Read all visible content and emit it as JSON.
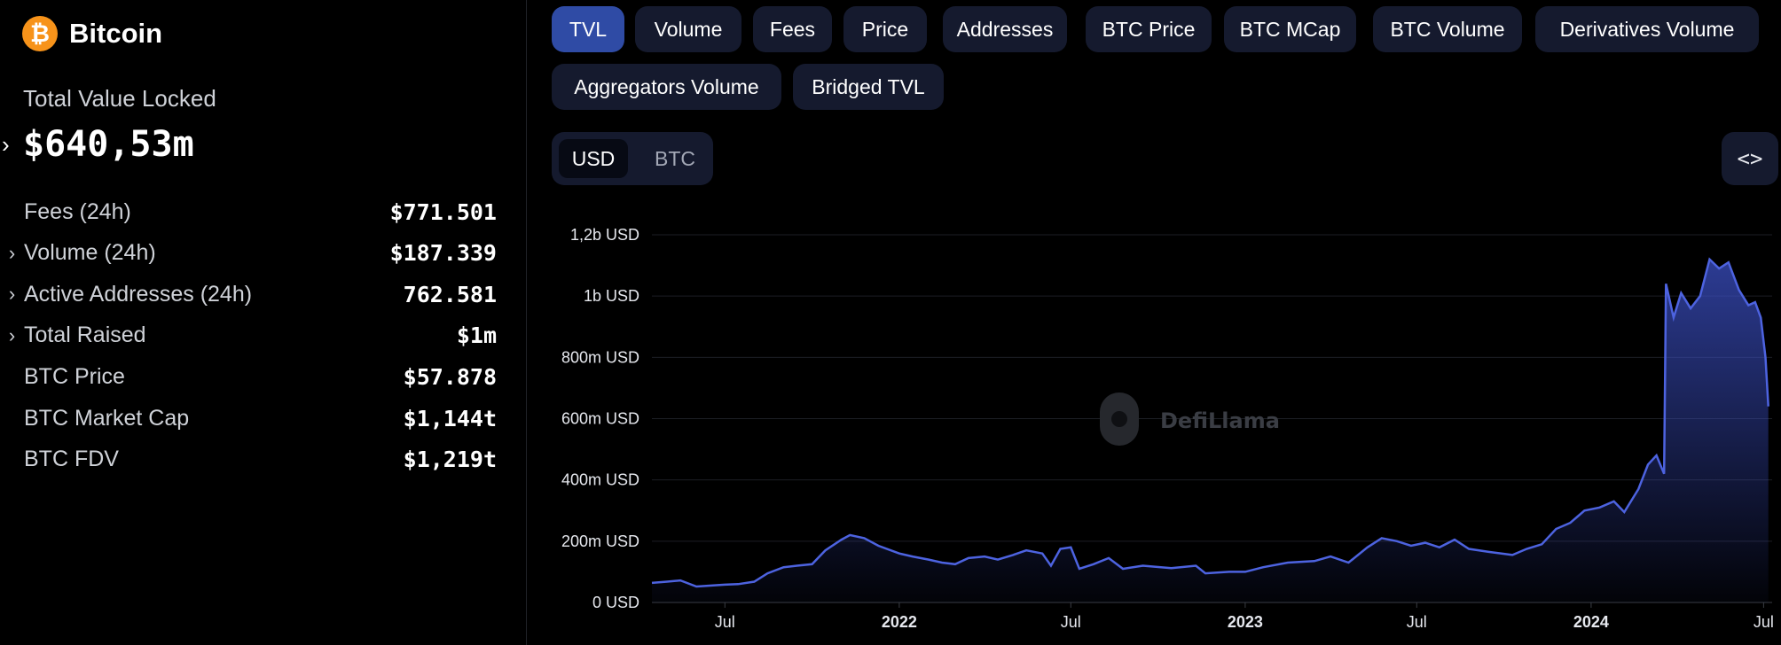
{
  "sidebar": {
    "chain_name": "Bitcoin",
    "logo_glyph": "₿",
    "tvl_label": "Total Value Locked",
    "tvl_value": "$640,53m",
    "stats": [
      {
        "label": "Fees (24h)",
        "value": "$771.501",
        "expandable": false
      },
      {
        "label": "Volume (24h)",
        "value": "$187.339",
        "expandable": true
      },
      {
        "label": "Active Addresses (24h)",
        "value": "762.581",
        "expandable": true
      },
      {
        "label": "Total Raised",
        "value": "$1m",
        "expandable": true
      },
      {
        "label": "BTC Price",
        "value": "$57.878",
        "expandable": false
      },
      {
        "label": "BTC Market Cap",
        "value": "$1,144t",
        "expandable": false
      },
      {
        "label": "BTC FDV",
        "value": "$1,219t",
        "expandable": false
      }
    ]
  },
  "tabs": [
    {
      "label": "TVL",
      "active": true
    },
    {
      "label": "Volume",
      "active": false
    },
    {
      "label": "Fees",
      "active": false
    },
    {
      "label": "Price",
      "active": false
    },
    {
      "label": "Addresses",
      "active": false
    },
    {
      "label": "BTC Price",
      "active": false
    },
    {
      "label": "BTC MCap",
      "active": false
    },
    {
      "label": "BTC Volume",
      "active": false
    },
    {
      "label": "Derivatives Volume",
      "active": false
    },
    {
      "label": "Aggregators Volume",
      "active": false
    },
    {
      "label": "Bridged TVL",
      "active": false
    }
  ],
  "currency_toggle": {
    "options": [
      "USD",
      "BTC"
    ],
    "selected": "USD"
  },
  "embed_button": {
    "glyph": "<>",
    "icon": "code-icon"
  },
  "watermark": {
    "text": "DefiLlama"
  },
  "colors": {
    "accent": "#2f4ba5",
    "line": "#4d63e0",
    "tab_bg": "#151a2e",
    "btc_orange": "#f7931a"
  },
  "chart_data": {
    "type": "area",
    "title": "",
    "xlabel": "",
    "ylabel": "",
    "y_unit": "USD",
    "ylim": [
      0,
      1200000000
    ],
    "y_ticks": [
      {
        "value": 0,
        "label": "0 USD"
      },
      {
        "value": 200000000,
        "label": "200m USD"
      },
      {
        "value": 400000000,
        "label": "400m USD"
      },
      {
        "value": 600000000,
        "label": "600m USD"
      },
      {
        "value": 800000000,
        "label": "800m USD"
      },
      {
        "value": 1000000000,
        "label": "1b USD"
      },
      {
        "value": 1200000000,
        "label": "1,2b USD"
      }
    ],
    "xlim": [
      "2021-04-15",
      "2024-07-10"
    ],
    "x_ticks": [
      {
        "date": "2021-07-01",
        "label": "Jul",
        "bold": false
      },
      {
        "date": "2022-01-01",
        "label": "2022",
        "bold": true
      },
      {
        "date": "2022-07-01",
        "label": "Jul",
        "bold": false
      },
      {
        "date": "2023-01-01",
        "label": "2023",
        "bold": true
      },
      {
        "date": "2023-07-01",
        "label": "Jul",
        "bold": false
      },
      {
        "date": "2024-01-01",
        "label": "2024",
        "bold": true
      },
      {
        "date": "2024-07-01",
        "label": "Jul",
        "bold": false
      }
    ],
    "grid": true,
    "series": [
      {
        "name": "TVL",
        "points": [
          [
            "2021-04-15",
            64000000
          ],
          [
            "2021-05-01",
            68000000
          ],
          [
            "2021-05-15",
            72000000
          ],
          [
            "2021-06-01",
            52000000
          ],
          [
            "2021-06-15",
            55000000
          ],
          [
            "2021-07-01",
            58000000
          ],
          [
            "2021-07-15",
            60000000
          ],
          [
            "2021-08-01",
            68000000
          ],
          [
            "2021-08-15",
            95000000
          ],
          [
            "2021-09-01",
            115000000
          ],
          [
            "2021-09-15",
            120000000
          ],
          [
            "2021-10-01",
            125000000
          ],
          [
            "2021-10-15",
            170000000
          ],
          [
            "2021-11-01",
            205000000
          ],
          [
            "2021-11-10",
            220000000
          ],
          [
            "2021-11-25",
            210000000
          ],
          [
            "2021-12-10",
            185000000
          ],
          [
            "2022-01-01",
            160000000
          ],
          [
            "2022-01-15",
            150000000
          ],
          [
            "2022-02-01",
            140000000
          ],
          [
            "2022-02-15",
            130000000
          ],
          [
            "2022-03-01",
            125000000
          ],
          [
            "2022-03-15",
            145000000
          ],
          [
            "2022-04-01",
            150000000
          ],
          [
            "2022-04-15",
            140000000
          ],
          [
            "2022-05-01",
            155000000
          ],
          [
            "2022-05-15",
            170000000
          ],
          [
            "2022-06-01",
            160000000
          ],
          [
            "2022-06-10",
            120000000
          ],
          [
            "2022-06-20",
            175000000
          ],
          [
            "2022-07-01",
            180000000
          ],
          [
            "2022-07-10",
            110000000
          ],
          [
            "2022-07-25",
            125000000
          ],
          [
            "2022-08-10",
            145000000
          ],
          [
            "2022-08-25",
            110000000
          ],
          [
            "2022-09-15",
            120000000
          ],
          [
            "2022-10-15",
            112000000
          ],
          [
            "2022-11-10",
            120000000
          ],
          [
            "2022-11-20",
            95000000
          ],
          [
            "2022-12-15",
            100000000
          ],
          [
            "2023-01-01",
            100000000
          ],
          [
            "2023-01-20",
            115000000
          ],
          [
            "2023-02-15",
            130000000
          ],
          [
            "2023-03-15",
            135000000
          ],
          [
            "2023-04-01",
            150000000
          ],
          [
            "2023-04-20",
            130000000
          ],
          [
            "2023-05-10",
            180000000
          ],
          [
            "2023-05-25",
            210000000
          ],
          [
            "2023-06-10",
            200000000
          ],
          [
            "2023-06-25",
            185000000
          ],
          [
            "2023-07-10",
            195000000
          ],
          [
            "2023-07-25",
            180000000
          ],
          [
            "2023-08-10",
            205000000
          ],
          [
            "2023-08-25",
            175000000
          ],
          [
            "2023-09-15",
            165000000
          ],
          [
            "2023-10-10",
            155000000
          ],
          [
            "2023-10-25",
            175000000
          ],
          [
            "2023-11-10",
            190000000
          ],
          [
            "2023-11-25",
            240000000
          ],
          [
            "2023-12-10",
            260000000
          ],
          [
            "2023-12-25",
            300000000
          ],
          [
            "2024-01-10",
            310000000
          ],
          [
            "2024-01-25",
            330000000
          ],
          [
            "2024-02-05",
            295000000
          ],
          [
            "2024-02-20",
            370000000
          ],
          [
            "2024-03-01",
            450000000
          ],
          [
            "2024-03-10",
            480000000
          ],
          [
            "2024-03-18",
            420000000
          ],
          [
            "2024-03-20",
            1040000000
          ],
          [
            "2024-03-28",
            930000000
          ],
          [
            "2024-04-05",
            1010000000
          ],
          [
            "2024-04-15",
            960000000
          ],
          [
            "2024-04-25",
            1000000000
          ],
          [
            "2024-05-05",
            1120000000
          ],
          [
            "2024-05-15",
            1090000000
          ],
          [
            "2024-05-25",
            1110000000
          ],
          [
            "2024-06-05",
            1020000000
          ],
          [
            "2024-06-15",
            970000000
          ],
          [
            "2024-06-22",
            980000000
          ],
          [
            "2024-06-28",
            930000000
          ],
          [
            "2024-07-03",
            800000000
          ],
          [
            "2024-07-06",
            640000000
          ]
        ]
      }
    ]
  }
}
